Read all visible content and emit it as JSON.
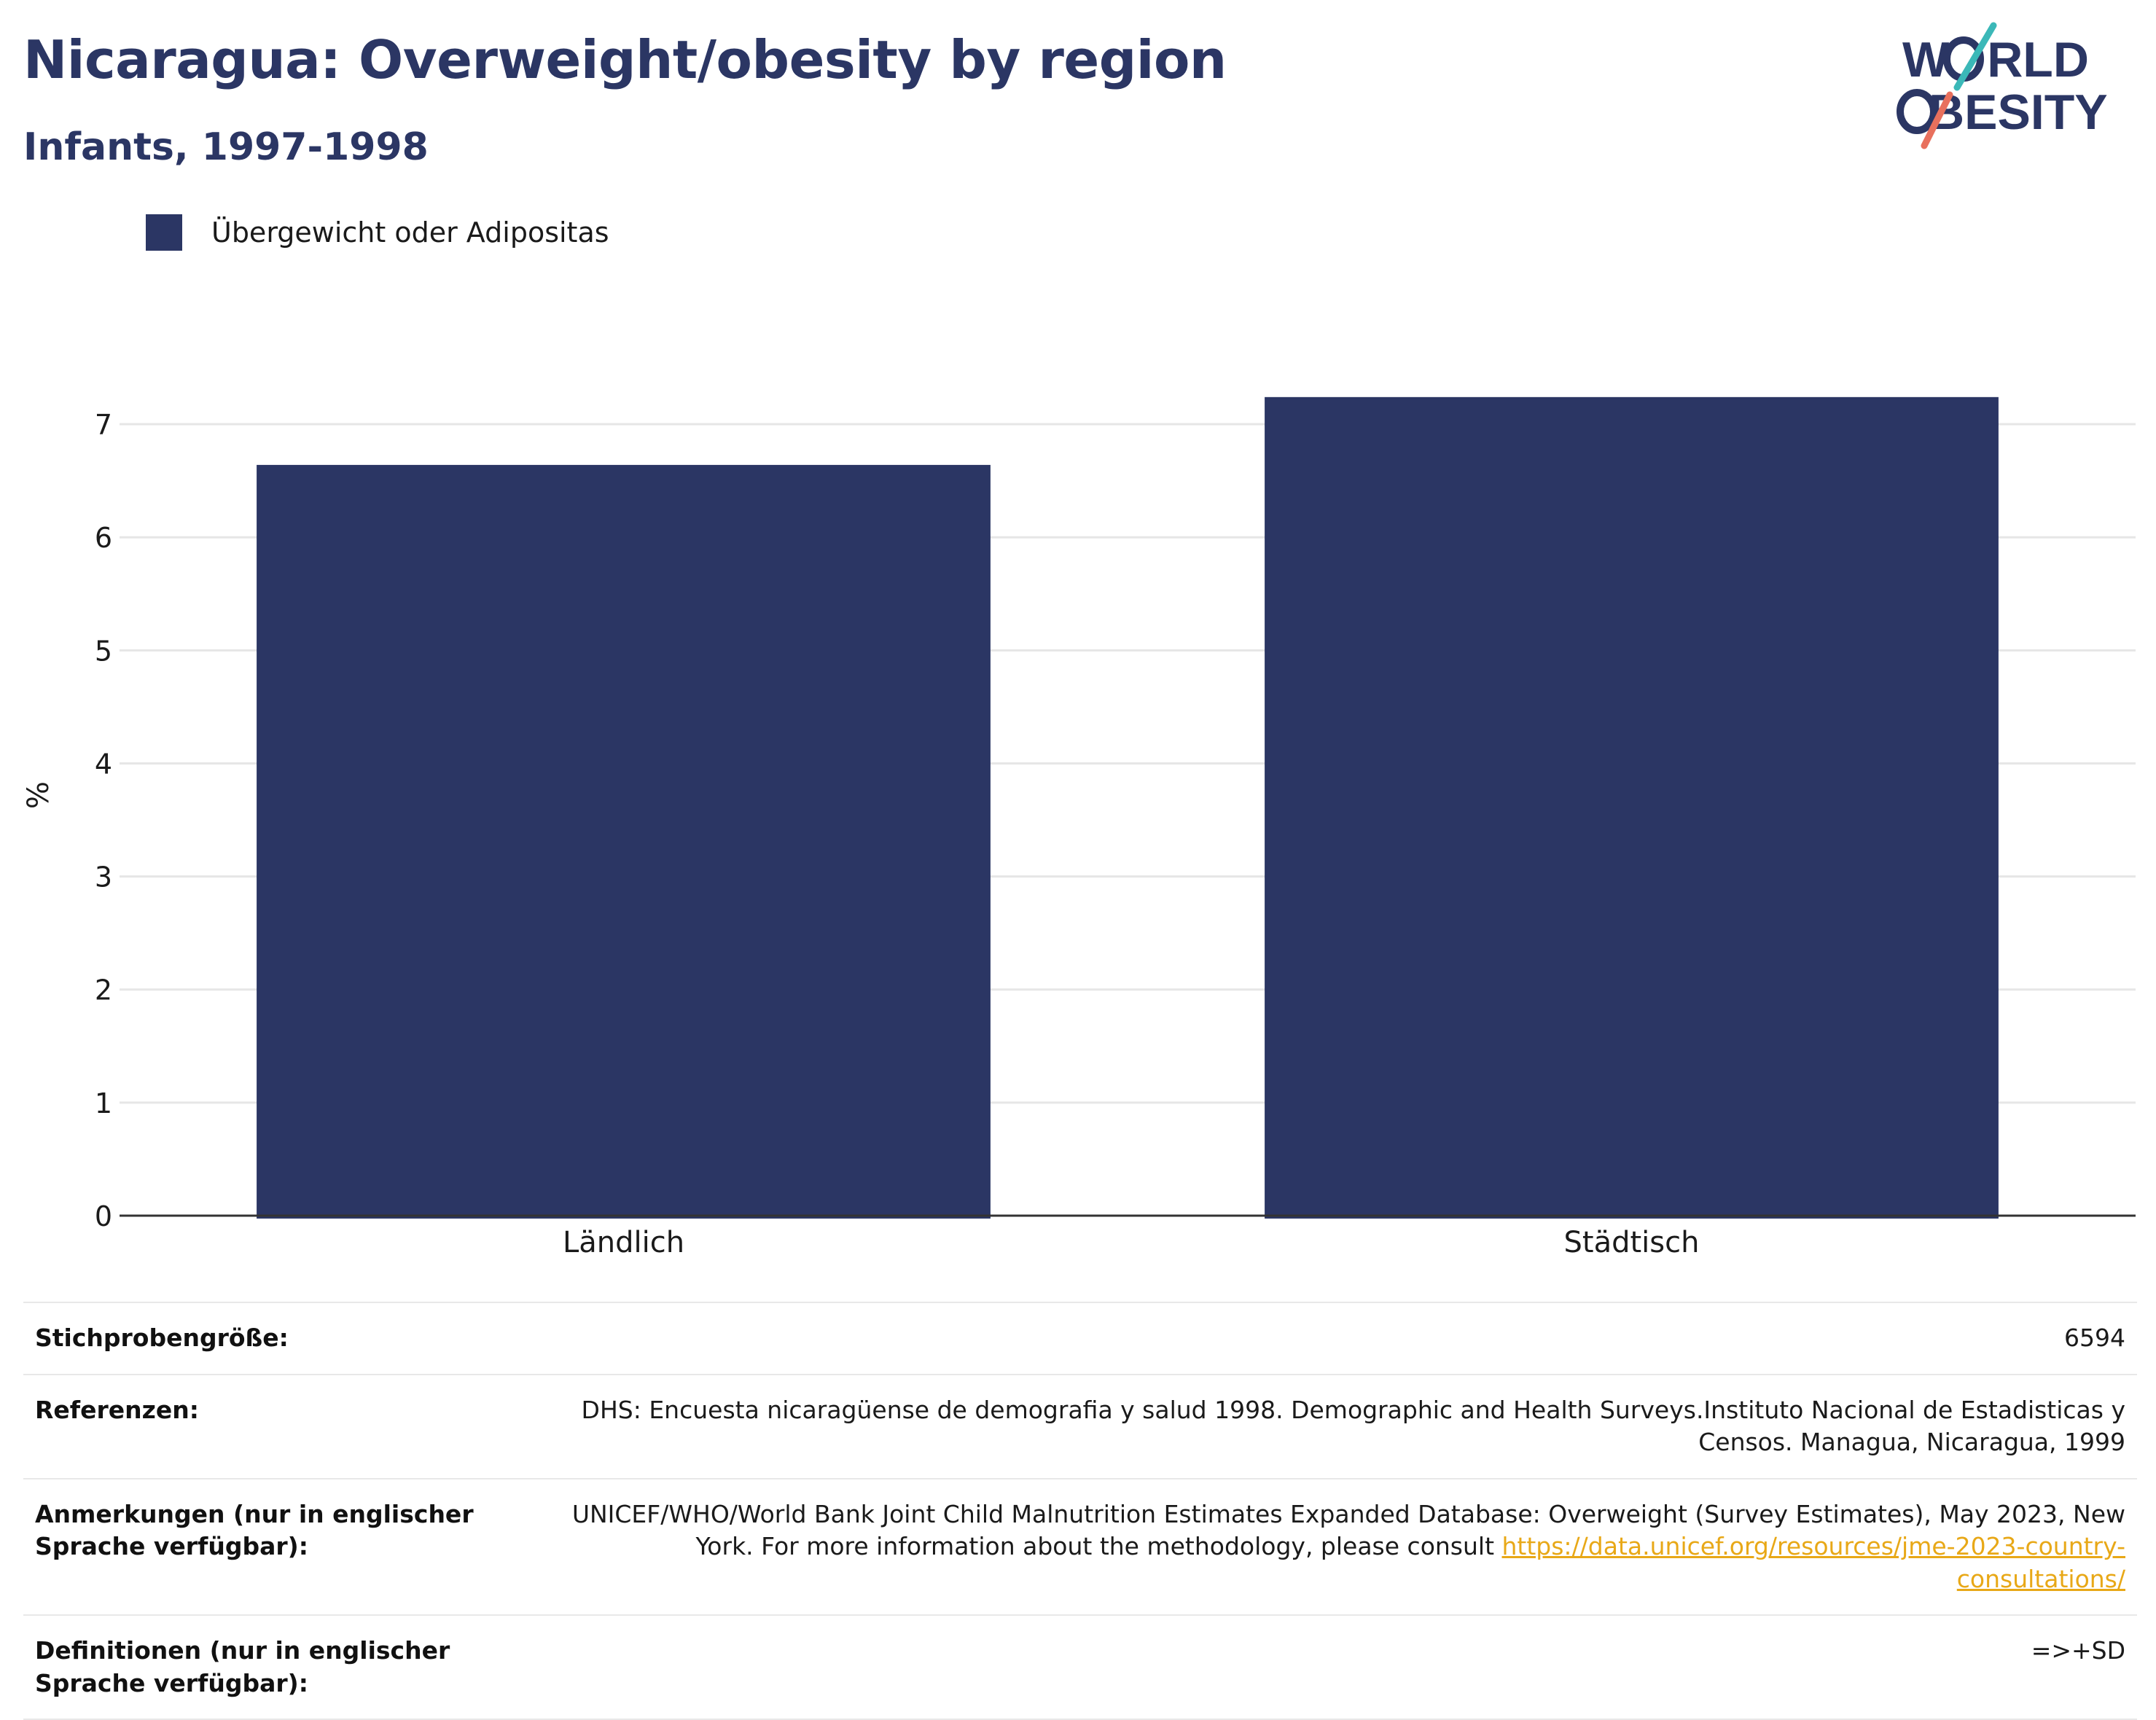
{
  "header": {
    "title": "Nicaragua: Overweight/obesity by region",
    "subtitle": "Infants, 1997-1998"
  },
  "logo": {
    "line1": "W",
    "line1b": "RLD",
    "line2": "BESITY",
    "colors": {
      "navy": "#2b3664",
      "teal": "#3bb8b8",
      "coral": "#e8705d"
    }
  },
  "chart_data": {
    "type": "bar",
    "categories": [
      "Ländlich",
      "Städtisch"
    ],
    "series": [
      {
        "name": "Übergewicht oder Adipositas",
        "values": [
          6.64,
          7.24
        ],
        "color": "#2b3664"
      }
    ],
    "ylabel": "%",
    "ylim": [
      0,
      7.4
    ],
    "yticks": [
      0,
      1,
      2,
      3,
      4,
      5,
      6,
      7
    ],
    "grid": true,
    "legend": "top-left"
  },
  "info": {
    "rows": [
      {
        "key": "Stichprobengröße:",
        "value": "6594"
      },
      {
        "key": "Referenzen:",
        "value": "DHS: Encuesta nicaragüense de demografia y salud 1998. Demographic and Health Surveys.Instituto Nacional de Estadisticas y Censos. Managua, Nicaragua, 1999"
      },
      {
        "key": "Anmerkungen (nur in englischer Sprache verfügbar):",
        "value": "UNICEF/WHO/World Bank Joint Child Malnutrition Estimates Expanded Database: Overweight (Survey Estimates), May 2023, New York. For more information about the methodology, please consult ",
        "link": "https://data.unicef.org/resources/jme-2023-country-consultations/"
      },
      {
        "key": "Definitionen (nur in englischer Sprache verfügbar):",
        "value": "=>+SD"
      }
    ]
  }
}
